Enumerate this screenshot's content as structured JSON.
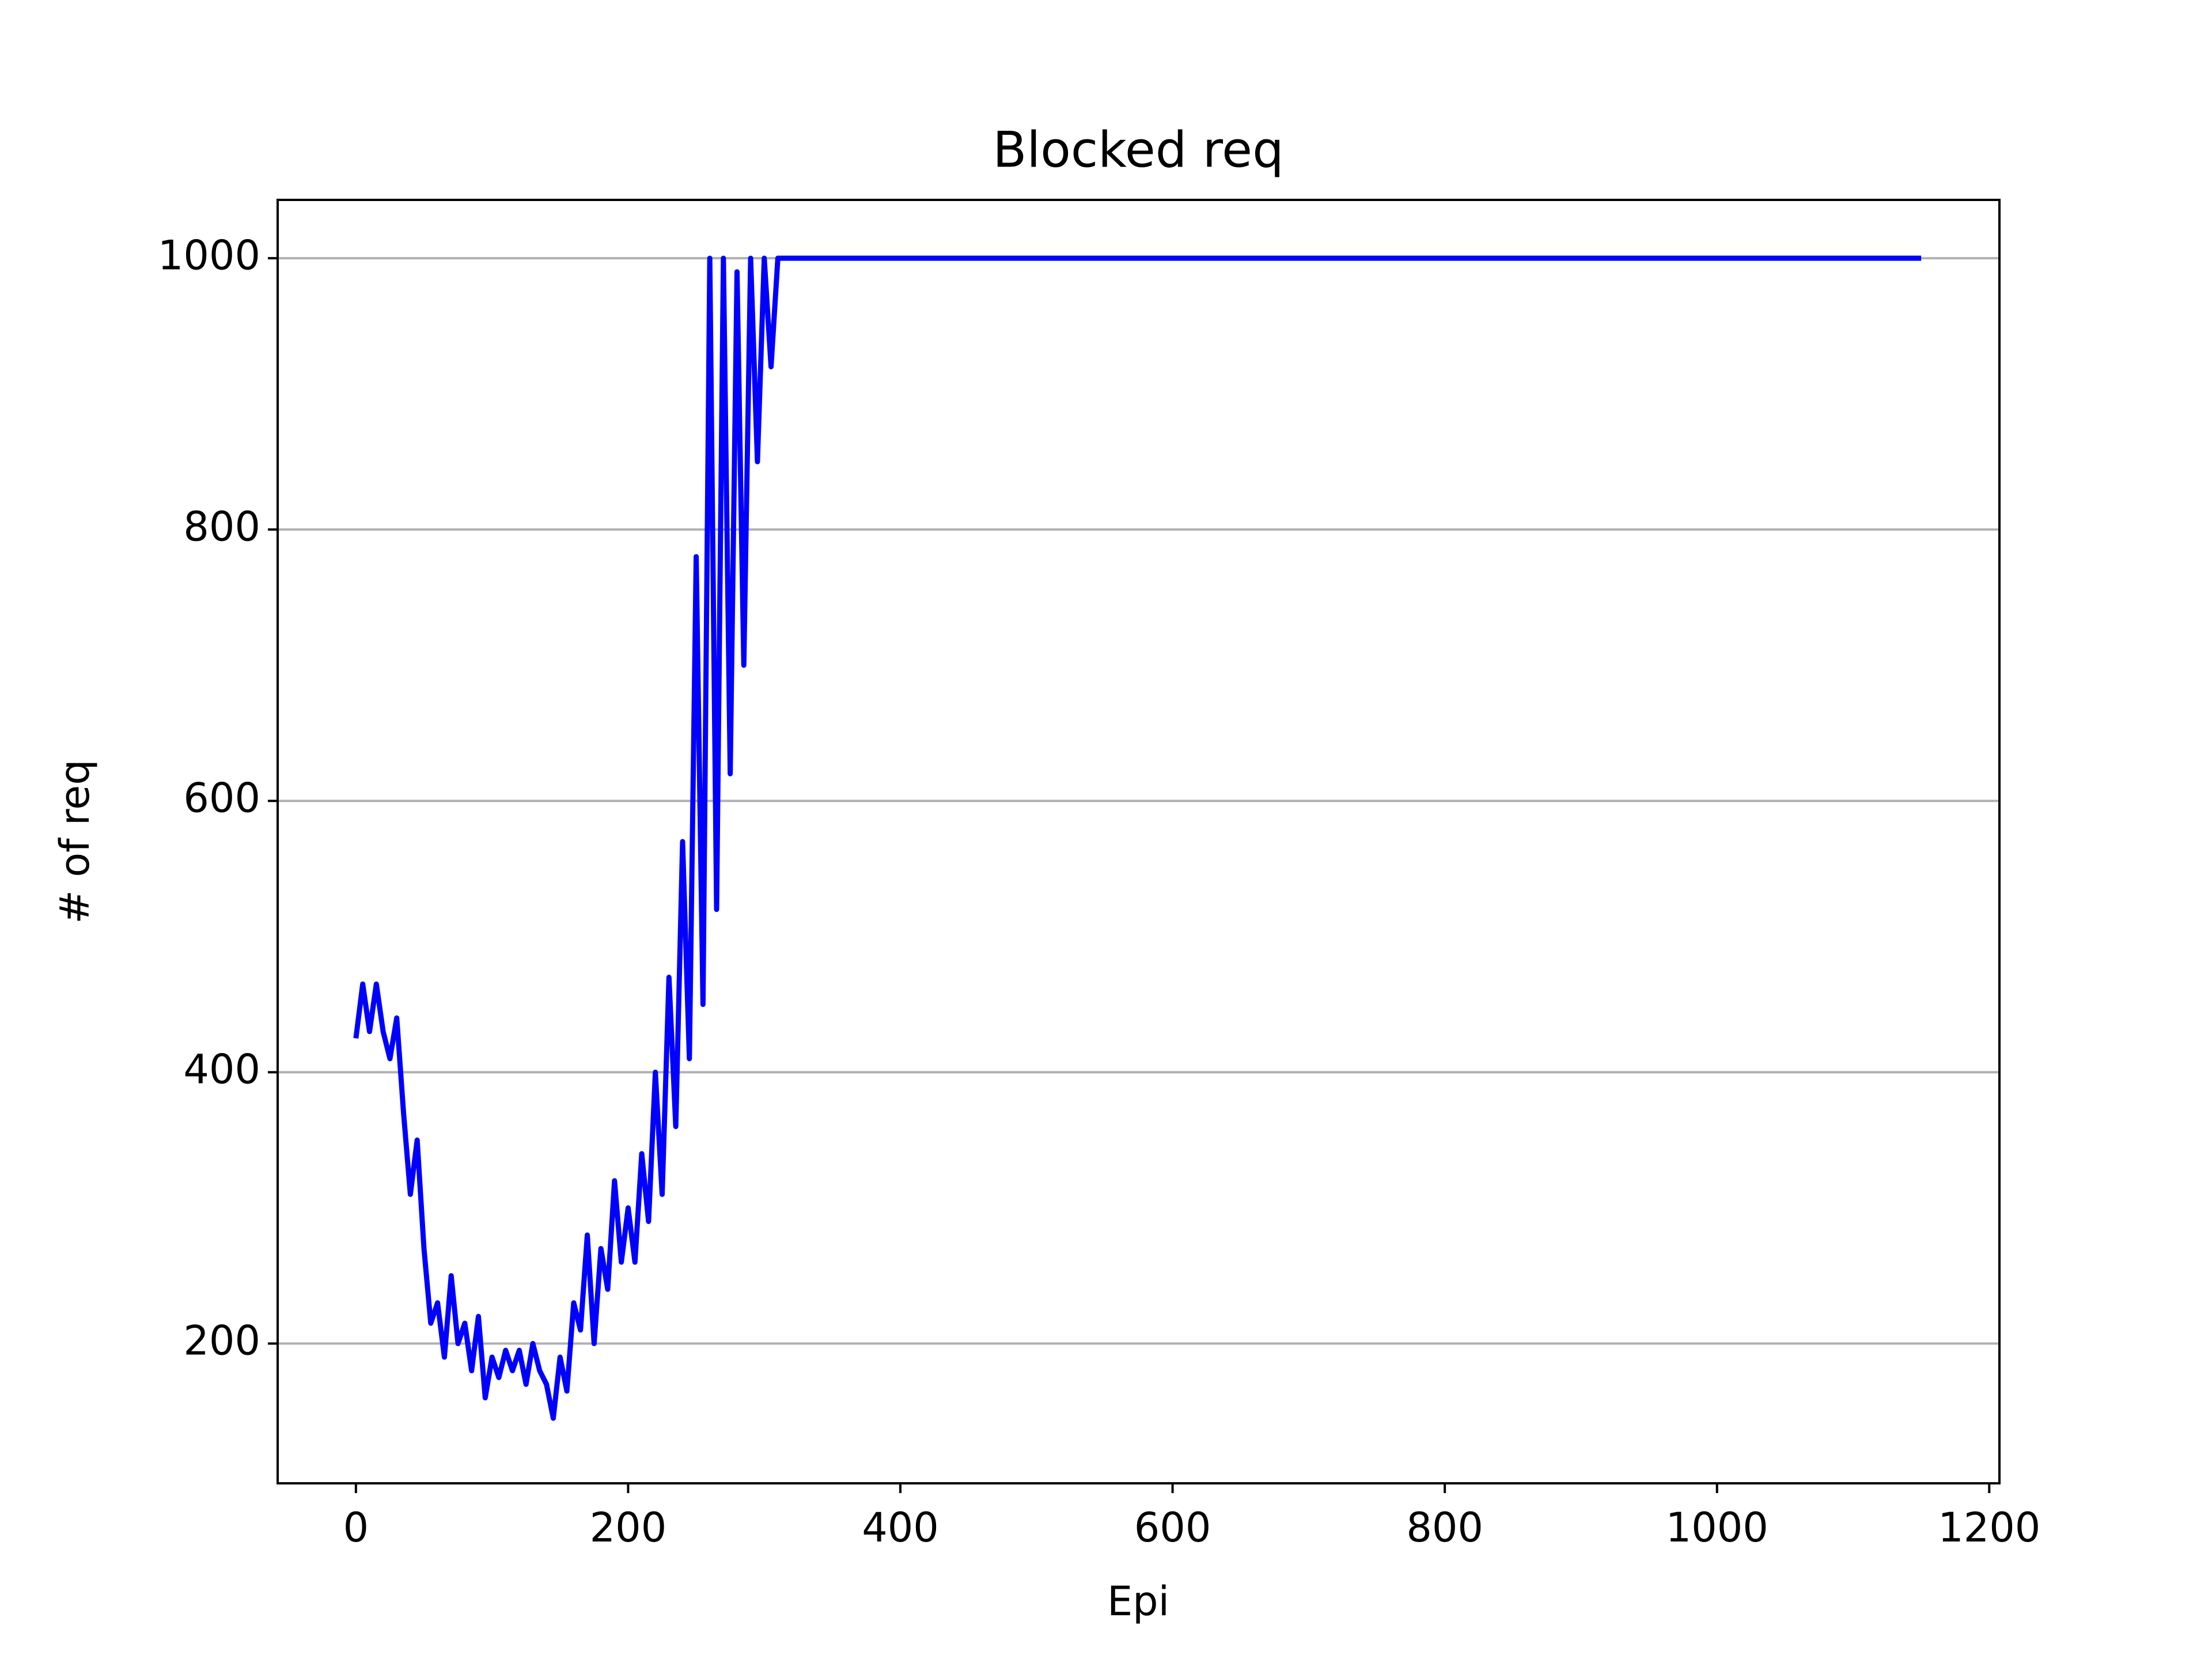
{
  "chart_data": {
    "type": "line",
    "title": "Blocked req",
    "x_label": "Epi",
    "y_label": "# of req",
    "series": [
      {
        "color": "#0000ff",
        "x": [
          0,
          5,
          10,
          15,
          20,
          25,
          30,
          35,
          40,
          45,
          50,
          55,
          60,
          65,
          70,
          75,
          80,
          85,
          90,
          95,
          100,
          105,
          110,
          115,
          120,
          125,
          130,
          135,
          140,
          145,
          150,
          155,
          160,
          165,
          170,
          175,
          180,
          185,
          190,
          195,
          200,
          205,
          210,
          215,
          220,
          225,
          230,
          235,
          240,
          245,
          250,
          255,
          260,
          265,
          270,
          275,
          280,
          285,
          290,
          295,
          300,
          305,
          310,
          315,
          1150
        ],
        "values": [
          425,
          465,
          430,
          465,
          430,
          410,
          440,
          370,
          310,
          350,
          270,
          215,
          230,
          190,
          250,
          200,
          215,
          180,
          220,
          160,
          190,
          175,
          195,
          180,
          195,
          170,
          200,
          180,
          170,
          145,
          190,
          165,
          230,
          210,
          280,
          200,
          270,
          240,
          320,
          260,
          300,
          260,
          340,
          290,
          400,
          310,
          470,
          360,
          570,
          410,
          780,
          450,
          1000,
          520,
          1000,
          620,
          990,
          700,
          1000,
          850,
          1000,
          920,
          1000,
          1000,
          1000
        ]
      }
    ],
    "xlim": [
      -57.5,
      1207.5
    ],
    "xticks": [
      0,
      200,
      400,
      600,
      800,
      1000,
      1200
    ],
    "ylim": [
      97,
      1043
    ],
    "yticks": [
      200,
      400,
      600,
      800,
      1000
    ],
    "grid": "y"
  }
}
